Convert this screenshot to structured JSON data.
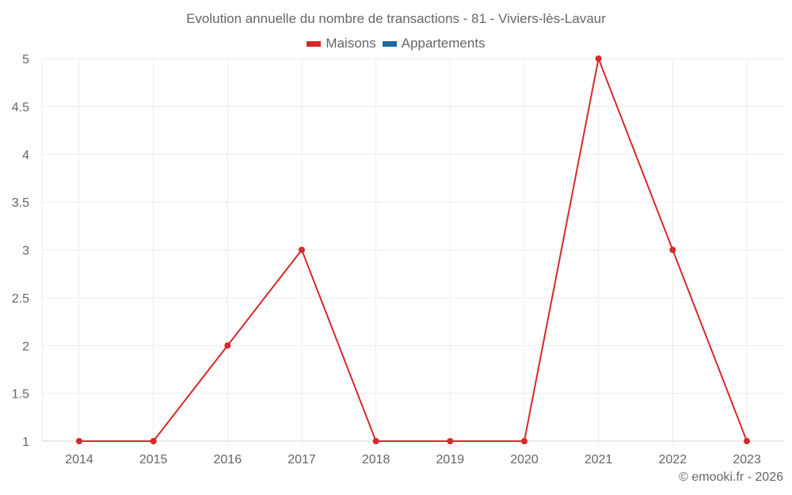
{
  "title": "Evolution annuelle du nombre de transactions - 81 - Viviers-lès-Lavaur",
  "legend": [
    {
      "label": "Maisons",
      "color": "#d32a2a"
    },
    {
      "label": "Appartements",
      "color": "#1a6aa0"
    }
  ],
  "credit": "© emooki.fr - 2026",
  "chart_data": {
    "type": "line",
    "title": "Evolution annuelle du nombre de transactions - 81 - Viviers-lès-Lavaur",
    "xlabel": "",
    "ylabel": "",
    "categories": [
      "2014",
      "2015",
      "2016",
      "2017",
      "2018",
      "2019",
      "2020",
      "2021",
      "2022",
      "2023"
    ],
    "series": [
      {
        "name": "Maisons",
        "color": "#d32a2a",
        "values": [
          1,
          1,
          2,
          3,
          1,
          1,
          1,
          5,
          3,
          1
        ]
      },
      {
        "name": "Appartements",
        "color": "#1a6aa0",
        "values": []
      }
    ],
    "ylim": [
      1,
      5
    ],
    "yticks": [
      "1",
      "1.5",
      "2",
      "2.5",
      "3",
      "3.5",
      "4",
      "4.5",
      "5"
    ],
    "grid": true,
    "legend_position": "top"
  }
}
